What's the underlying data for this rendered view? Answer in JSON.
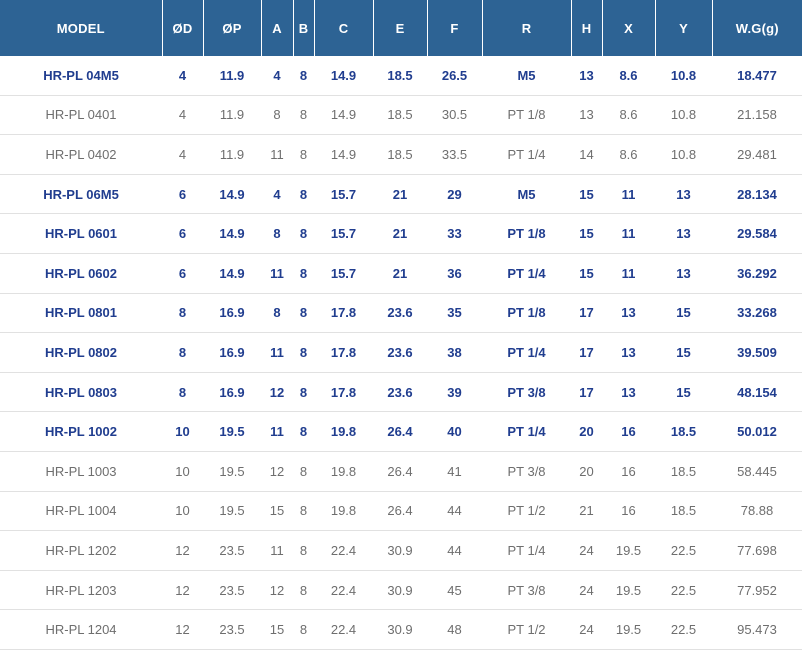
{
  "colors": {
    "header_bg": "#2d6394",
    "header_text": "#ffffff",
    "highlight_text": "#203d8f",
    "normal_text": "#6e6e6e",
    "row_divider": "#e1e1e1"
  },
  "table": {
    "columns": [
      "MODEL",
      "ØD",
      "ØP",
      "A",
      "B",
      "C",
      "E",
      "F",
      "R",
      "H",
      "X",
      "Y",
      "W.G(g)"
    ],
    "column_keys": [
      "model",
      "od",
      "op",
      "a",
      "b",
      "c",
      "e",
      "f",
      "r",
      "h",
      "x",
      "y",
      "wg"
    ],
    "rows": [
      {
        "highlight": true,
        "cells": [
          "HR-PL 04M5",
          "4",
          "11.9",
          "4",
          "8",
          "14.9",
          "18.5",
          "26.5",
          "M5",
          "13",
          "8.6",
          "10.8",
          "18.477"
        ]
      },
      {
        "highlight": false,
        "cells": [
          "HR-PL 0401",
          "4",
          "11.9",
          "8",
          "8",
          "14.9",
          "18.5",
          "30.5",
          "PT 1/8",
          "13",
          "8.6",
          "10.8",
          "21.158"
        ]
      },
      {
        "highlight": false,
        "cells": [
          "HR-PL 0402",
          "4",
          "11.9",
          "11",
          "8",
          "14.9",
          "18.5",
          "33.5",
          "PT 1/4",
          "14",
          "8.6",
          "10.8",
          "29.481"
        ]
      },
      {
        "highlight": true,
        "cells": [
          "HR-PL 06M5",
          "6",
          "14.9",
          "4",
          "8",
          "15.7",
          "21",
          "29",
          "M5",
          "15",
          "11",
          "13",
          "28.134"
        ]
      },
      {
        "highlight": true,
        "cells": [
          "HR-PL 0601",
          "6",
          "14.9",
          "8",
          "8",
          "15.7",
          "21",
          "33",
          "PT 1/8",
          "15",
          "11",
          "13",
          "29.584"
        ]
      },
      {
        "highlight": true,
        "cells": [
          "HR-PL 0602",
          "6",
          "14.9",
          "11",
          "8",
          "15.7",
          "21",
          "36",
          "PT 1/4",
          "15",
          "11",
          "13",
          "36.292"
        ]
      },
      {
        "highlight": true,
        "cells": [
          "HR-PL 0801",
          "8",
          "16.9",
          "8",
          "8",
          "17.8",
          "23.6",
          "35",
          "PT 1/8",
          "17",
          "13",
          "15",
          "33.268"
        ]
      },
      {
        "highlight": true,
        "cells": [
          "HR-PL 0802",
          "8",
          "16.9",
          "11",
          "8",
          "17.8",
          "23.6",
          "38",
          "PT 1/4",
          "17",
          "13",
          "15",
          "39.509"
        ]
      },
      {
        "highlight": true,
        "cells": [
          "HR-PL 0803",
          "8",
          "16.9",
          "12",
          "8",
          "17.8",
          "23.6",
          "39",
          "PT 3/8",
          "17",
          "13",
          "15",
          "48.154"
        ]
      },
      {
        "highlight": true,
        "cells": [
          "HR-PL 1002",
          "10",
          "19.5",
          "11",
          "8",
          "19.8",
          "26.4",
          "40",
          "PT 1/4",
          "20",
          "16",
          "18.5",
          "50.012"
        ]
      },
      {
        "highlight": false,
        "cells": [
          "HR-PL 1003",
          "10",
          "19.5",
          "12",
          "8",
          "19.8",
          "26.4",
          "41",
          "PT 3/8",
          "20",
          "16",
          "18.5",
          "58.445"
        ]
      },
      {
        "highlight": false,
        "cells": [
          "HR-PL 1004",
          "10",
          "19.5",
          "15",
          "8",
          "19.8",
          "26.4",
          "44",
          "PT 1/2",
          "21",
          "16",
          "18.5",
          "78.88"
        ]
      },
      {
        "highlight": false,
        "cells": [
          "HR-PL 1202",
          "12",
          "23.5",
          "11",
          "8",
          "22.4",
          "30.9",
          "44",
          "PT 1/4",
          "24",
          "19.5",
          "22.5",
          "77.698"
        ]
      },
      {
        "highlight": false,
        "cells": [
          "HR-PL 1203",
          "12",
          "23.5",
          "12",
          "8",
          "22.4",
          "30.9",
          "45",
          "PT 3/8",
          "24",
          "19.5",
          "22.5",
          "77.952"
        ]
      },
      {
        "highlight": false,
        "cells": [
          "HR-PL 1204",
          "12",
          "23.5",
          "15",
          "8",
          "22.4",
          "30.9",
          "48",
          "PT 1/2",
          "24",
          "19.5",
          "22.5",
          "95.473"
        ]
      }
    ]
  }
}
